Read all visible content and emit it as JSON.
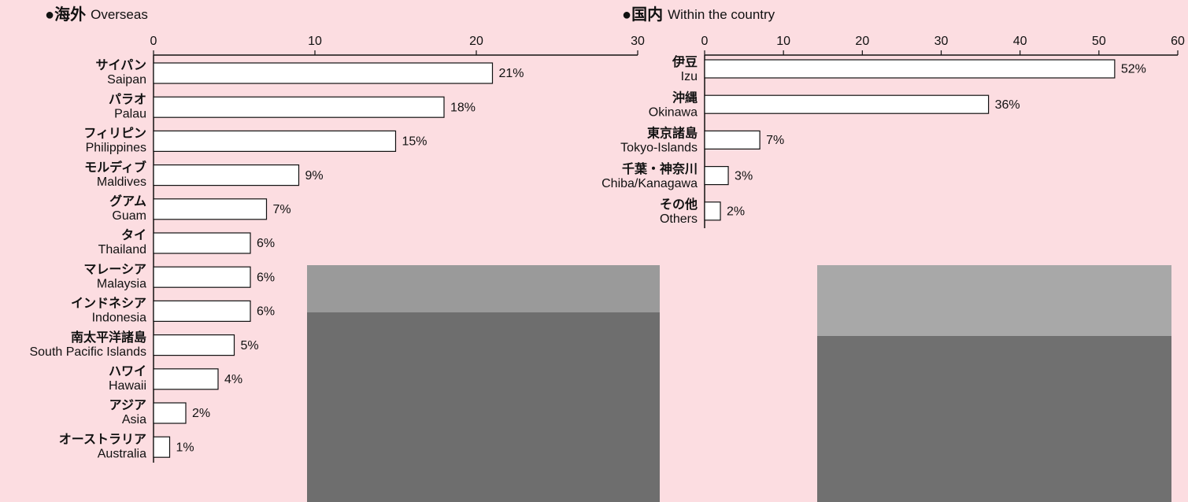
{
  "chart_data": [
    {
      "type": "barh",
      "title": "●海外",
      "subtitle": "Overseas",
      "categories": [
        "サイパン",
        "パラオ",
        "フィリピン",
        "モルディブ",
        "グアム",
        "タイ",
        "マレーシア",
        "インドネシア",
        "南太平洋諸島",
        "ハワイ",
        "アジア",
        "オーストラリア"
      ],
      "categories_en": [
        "Saipan",
        "Palau",
        "Philippines",
        "Maldives",
        "Guam",
        "Thailand",
        "Malaysia",
        "Indonesia",
        "South Pacific Islands",
        "Hawaii",
        "Asia",
        "Australia"
      ],
      "values": [
        21,
        18,
        15,
        9,
        7,
        6,
        6,
        6,
        5,
        4,
        2,
        1
      ],
      "value_labels": [
        "21%",
        "18%",
        "15%",
        "9%",
        "7%",
        "6%",
        "6%",
        "6%",
        "5%",
        "4%",
        "2%",
        "1%"
      ],
      "color": "#ffffff",
      "xlim": [
        0,
        30
      ],
      "xticks": [
        0,
        10,
        20,
        30
      ]
    },
    {
      "type": "barh",
      "title": "●国内",
      "subtitle": "Within the country",
      "categories": [
        "伊豆",
        "沖縄",
        "東京諸島",
        "千葉・神奈川",
        "その他"
      ],
      "categories_en": [
        "Izu",
        "Okinawa",
        "Tokyo-Islands",
        "Chiba/Kanagawa",
        "Others"
      ],
      "values": [
        52,
        36,
        7,
        3,
        2
      ],
      "value_labels": [
        "52%",
        "36%",
        "7%",
        "3%",
        "2%"
      ],
      "color": "#ffffff",
      "xlim": [
        0,
        60
      ],
      "xticks": [
        0,
        10,
        20,
        30,
        40,
        50,
        60
      ]
    }
  ]
}
